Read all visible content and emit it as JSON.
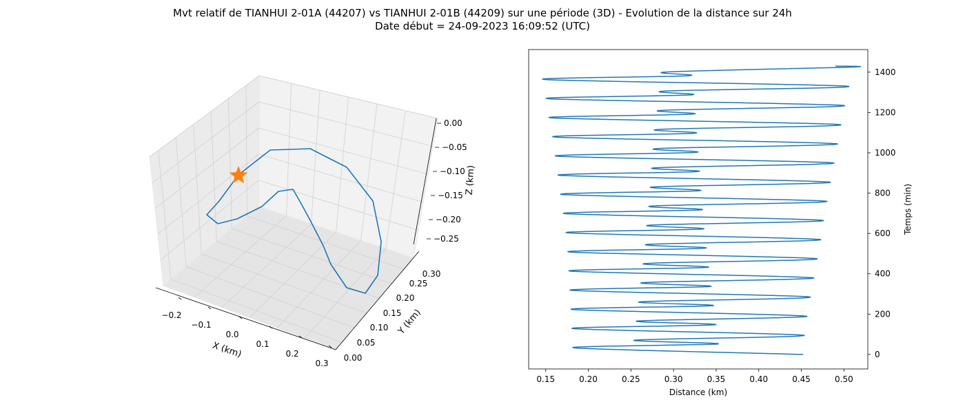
{
  "figure": {
    "title_line1": "Mvt relatif de TIANHUI 2-01A (44207) vs TIANHUI 2-01B (44209) sur une période (3D) - Evolution de la distance sur 24h",
    "title_line2": "Date début = 24-09-2023 16:09:52 (UTC)"
  },
  "chart_data": [
    {
      "type": "line",
      "projection": "3d",
      "xlabel": "X (km)",
      "ylabel": "Y (km)",
      "zlabel": "Z (km)",
      "xticks": [
        "−0.2",
        "−0.1",
        "0.0",
        "0.1",
        "0.2",
        "0.3"
      ],
      "yticks": [
        "0.00",
        "0.05",
        "0.10",
        "0.15",
        "0.20",
        "0.25",
        "0.30"
      ],
      "zticks": [
        "0.00",
        "−0.05",
        "−0.10",
        "−0.15",
        "−0.20",
        "−0.25"
      ],
      "xlim": [
        -0.25,
        0.33
      ],
      "ylim": [
        -0.01,
        0.33
      ],
      "zlim": [
        -0.27,
        0.0
      ],
      "grid": true,
      "line_color": "#1f77b4",
      "marker_color": "#ff7f0e",
      "marker": "star",
      "trajectory": [
        {
          "x": -0.19,
          "y": 0.1,
          "z": -0.1
        },
        {
          "x": -0.13,
          "y": 0.05,
          "z": -0.12
        },
        {
          "x": -0.04,
          "y": 0.03,
          "z": -0.13
        },
        {
          "x": 0.05,
          "y": 0.04,
          "z": -0.14
        },
        {
          "x": 0.13,
          "y": 0.07,
          "z": -0.16
        },
        {
          "x": 0.2,
          "y": 0.12,
          "z": -0.19
        },
        {
          "x": 0.25,
          "y": 0.17,
          "z": -0.22
        },
        {
          "x": 0.27,
          "y": 0.22,
          "z": -0.24
        },
        {
          "x": 0.26,
          "y": 0.27,
          "z": -0.25
        },
        {
          "x": 0.2,
          "y": 0.3,
          "z": -0.24
        },
        {
          "x": 0.12,
          "y": 0.31,
          "z": -0.22
        },
        {
          "x": 0.02,
          "y": 0.3,
          "z": -0.19
        },
        {
          "x": -0.07,
          "y": 0.28,
          "z": -0.16
        },
        {
          "x": -0.13,
          "y": 0.25,
          "z": -0.13
        },
        {
          "x": -0.15,
          "y": 0.2,
          "z": -0.1
        },
        {
          "x": -0.15,
          "y": 0.15,
          "z": -0.08
        },
        {
          "x": -0.18,
          "y": 0.12,
          "z": -0.09
        },
        {
          "x": -0.19,
          "y": 0.1,
          "z": -0.1
        }
      ],
      "marker_point": {
        "x": -0.19,
        "y": 0.1,
        "z": -0.1
      }
    },
    {
      "type": "line",
      "xlabel": "Distance (km)",
      "ylabel": "Temps (min)",
      "xticks": [
        "0.15",
        "0.20",
        "0.25",
        "0.30",
        "0.35",
        "0.40",
        "0.45",
        "0.50"
      ],
      "yticks": [
        "0",
        "200",
        "400",
        "600",
        "800",
        "1000",
        "1200",
        "1400"
      ],
      "xlim": [
        0.13,
        0.528
      ],
      "ylim": [
        -72,
        1512
      ],
      "grid": false,
      "line_color": "#1f77b4",
      "orbital_period_min": 95,
      "duration_min": 1440,
      "series": [
        {
          "points": [
            {
              "t": 0,
              "d": 0.452
            },
            {
              "t": 33,
              "d": 0.183
            },
            {
              "t": 52,
              "d": 0.352
            },
            {
              "t": 71,
              "d": 0.255
            },
            {
              "t": 95,
              "d": 0.453
            },
            {
              "t": 128,
              "d": 0.182
            },
            {
              "t": 147,
              "d": 0.349
            },
            {
              "t": 166,
              "d": 0.258
            },
            {
              "t": 190,
              "d": 0.456
            },
            {
              "t": 223,
              "d": 0.181
            },
            {
              "t": 242,
              "d": 0.346
            },
            {
              "t": 261,
              "d": 0.261
            },
            {
              "t": 285,
              "d": 0.46
            },
            {
              "t": 318,
              "d": 0.18
            },
            {
              "t": 337,
              "d": 0.343
            },
            {
              "t": 356,
              "d": 0.264
            },
            {
              "t": 380,
              "d": 0.464
            },
            {
              "t": 413,
              "d": 0.179
            },
            {
              "t": 432,
              "d": 0.34
            },
            {
              "t": 451,
              "d": 0.267
            },
            {
              "t": 475,
              "d": 0.468
            },
            {
              "t": 508,
              "d": 0.178
            },
            {
              "t": 527,
              "d": 0.337
            },
            {
              "t": 546,
              "d": 0.27
            },
            {
              "t": 570,
              "d": 0.472
            },
            {
              "t": 603,
              "d": 0.176
            },
            {
              "t": 622,
              "d": 0.334
            },
            {
              "t": 641,
              "d": 0.272
            },
            {
              "t": 665,
              "d": 0.475
            },
            {
              "t": 698,
              "d": 0.173
            },
            {
              "t": 717,
              "d": 0.332
            },
            {
              "t": 736,
              "d": 0.275
            },
            {
              "t": 760,
              "d": 0.479
            },
            {
              "t": 793,
              "d": 0.17
            },
            {
              "t": 812,
              "d": 0.33
            },
            {
              "t": 831,
              "d": 0.277
            },
            {
              "t": 855,
              "d": 0.483
            },
            {
              "t": 888,
              "d": 0.167
            },
            {
              "t": 907,
              "d": 0.328
            },
            {
              "t": 926,
              "d": 0.279
            },
            {
              "t": 950,
              "d": 0.487
            },
            {
              "t": 983,
              "d": 0.164
            },
            {
              "t": 1002,
              "d": 0.326
            },
            {
              "t": 1021,
              "d": 0.281
            },
            {
              "t": 1045,
              "d": 0.491
            },
            {
              "t": 1078,
              "d": 0.161
            },
            {
              "t": 1097,
              "d": 0.324
            },
            {
              "t": 1116,
              "d": 0.283
            },
            {
              "t": 1140,
              "d": 0.495
            },
            {
              "t": 1173,
              "d": 0.157
            },
            {
              "t": 1192,
              "d": 0.322
            },
            {
              "t": 1211,
              "d": 0.287
            },
            {
              "t": 1235,
              "d": 0.499
            },
            {
              "t": 1268,
              "d": 0.154
            },
            {
              "t": 1287,
              "d": 0.32
            },
            {
              "t": 1306,
              "d": 0.29
            },
            {
              "t": 1330,
              "d": 0.504
            },
            {
              "t": 1363,
              "d": 0.15
            },
            {
              "t": 1382,
              "d": 0.317
            },
            {
              "t": 1401,
              "d": 0.293
            },
            {
              "t": 1425,
              "d": 0.508
            },
            {
              "t": 1430,
              "d": 0.49
            }
          ]
        }
      ]
    }
  ]
}
